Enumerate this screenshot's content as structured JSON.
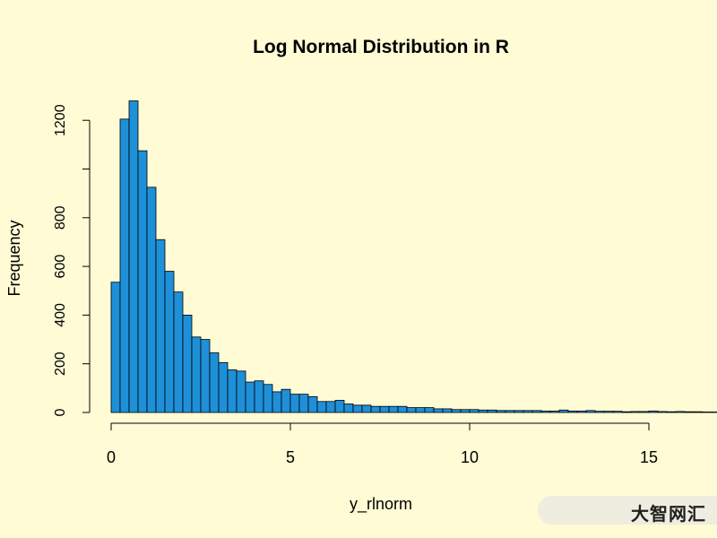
{
  "chart_data": {
    "type": "bar",
    "title": "Log Normal Distribution in R",
    "xlabel": "y_rlnorm",
    "ylabel": "Frequency",
    "bin_width": 0.25,
    "x_start": 0,
    "xlim": [
      0,
      15.5
    ],
    "ylim": [
      0,
      1290
    ],
    "x_ticks": [
      0,
      5,
      10,
      15
    ],
    "y_ticks": [
      0,
      200,
      400,
      600,
      800,
      1000,
      1200
    ],
    "y_tick_labels": [
      "0",
      "200",
      "400",
      "600",
      "800",
      "",
      "1200"
    ],
    "values": [
      535,
      1205,
      1280,
      1075,
      925,
      710,
      580,
      495,
      400,
      310,
      300,
      245,
      205,
      175,
      170,
      125,
      130,
      115,
      85,
      95,
      75,
      75,
      65,
      45,
      45,
      50,
      35,
      30,
      30,
      25,
      25,
      25,
      25,
      20,
      20,
      20,
      15,
      15,
      12,
      12,
      12,
      10,
      10,
      8,
      8,
      8,
      8,
      8,
      6,
      6,
      10,
      6,
      6,
      8,
      5,
      5,
      5,
      3,
      4,
      4,
      6,
      4,
      3,
      4,
      3,
      3,
      2,
      2,
      3,
      2,
      2,
      2,
      3,
      2,
      1,
      1,
      1,
      1,
      1,
      1,
      2,
      1
    ],
    "bar_color": "#1e90d8",
    "bar_edge_color": "#000000",
    "background": "#fffbd5"
  },
  "watermark": {
    "text": "大智网汇"
  }
}
